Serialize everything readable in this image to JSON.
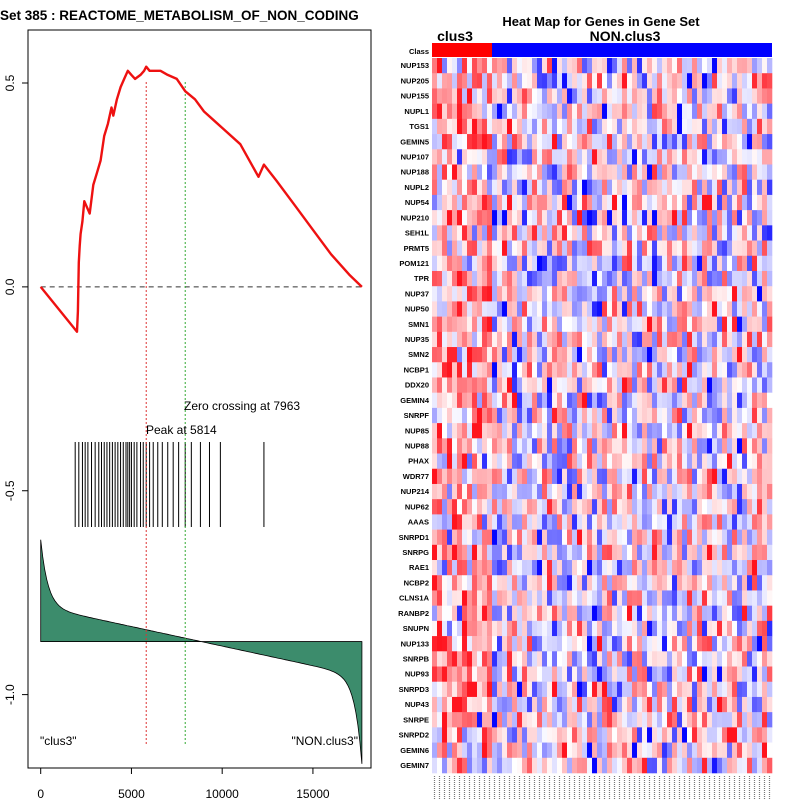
{
  "chart_data": [
    {
      "type": "line",
      "title": "Set  385 : REACTOME_METABOLISM_OF_NON_CODING",
      "xlabel": "",
      "ylabel": "",
      "xlim": [
        -700,
        18200
      ],
      "ylim": [
        -1.18,
        0.63
      ],
      "xticks": [
        0,
        5000,
        10000,
        15000
      ],
      "xtick_labels": [
        "0",
        "5000",
        "10000",
        "15000"
      ],
      "yticks": [
        0.5,
        0.0,
        -0.5,
        -1.0
      ],
      "ytick_labels": [
        "0.5",
        "0.0",
        "-0.5",
        "-1.0"
      ],
      "running_es": {
        "x": [
          0,
          2000,
          2050,
          2100,
          2150,
          2200,
          2300,
          2400,
          2500,
          2700,
          2900,
          3100,
          3300,
          3500,
          3700,
          3900,
          4000,
          4200,
          4400,
          4600,
          4800,
          5000,
          5200,
          5500,
          5700,
          5814,
          6000,
          6300,
          6600,
          7000,
          7500,
          7963,
          8500,
          9000,
          9500,
          10000,
          11000,
          12000,
          12300,
          13000,
          14000,
          15000,
          16000,
          17000,
          17700
        ],
        "y": [
          0.0,
          -0.11,
          -0.06,
          0.06,
          0.1,
          0.13,
          0.16,
          0.21,
          0.2,
          0.18,
          0.25,
          0.28,
          0.31,
          0.37,
          0.4,
          0.44,
          0.42,
          0.46,
          0.49,
          0.51,
          0.53,
          0.52,
          0.51,
          0.52,
          0.53,
          0.54,
          0.53,
          0.53,
          0.53,
          0.52,
          0.51,
          0.48,
          0.46,
          0.43,
          0.41,
          0.39,
          0.35,
          0.27,
          0.3,
          0.26,
          0.2,
          0.14,
          0.08,
          0.03,
          0.0
        ]
      },
      "hits": [
        1900,
        2100,
        2300,
        2450,
        2600,
        2800,
        3000,
        3200,
        3350,
        3500,
        3650,
        3800,
        3950,
        4100,
        4250,
        4400,
        4550,
        4700,
        4800,
        4900,
        5000,
        5150,
        5300,
        5500,
        5650,
        5814,
        6000,
        6200,
        6450,
        6700,
        7000,
        7300,
        7600,
        7963,
        8300,
        8800,
        9300,
        9900,
        12300
      ],
      "peak": {
        "x": 5814,
        "label": "Peak at 5814"
      },
      "zero_crossing": {
        "x": 7963,
        "label": "Zero crossing at 7963"
      },
      "ranked_metric": {
        "baseline": -0.87,
        "start": -0.62,
        "end": -1.17,
        "n": 17700
      },
      "annotations": {
        "left": "\"clus3\"",
        "right": "\"NON.clus3\""
      },
      "colors": {
        "es_line": "#ee1111",
        "zero_line": "#333333",
        "peak_line": "#dd3333",
        "zero_cross_line": "#33aa33",
        "metric_fill": "#3c8c6c",
        "hits": "#000000"
      }
    },
    {
      "type": "heatmap",
      "title": "Heat Map for Genes in Gene Set",
      "class_label": "Class",
      "class_groups": [
        {
          "name": "clus3",
          "count": 12,
          "color": "#ff0000"
        },
        {
          "name": "NON.clus3",
          "count": 56,
          "color": "#0000ff"
        }
      ],
      "columns": 68,
      "rows": [
        "NUP153",
        "NUP205",
        "NUP155",
        "NUPL1",
        "TGS1",
        "GEMIN5",
        "NUP107",
        "NUP188",
        "NUPL2",
        "NUP54",
        "NUP210",
        "SEH1L",
        "PRMT5",
        "POM121",
        "TPR",
        "NUP37",
        "NUP50",
        "SMN1",
        "NUP35",
        "SMN2",
        "NCBP1",
        "DDX20",
        "GEMIN4",
        "SNRPF",
        "NUP85",
        "NUP88",
        "PHAX",
        "WDR77",
        "NUP214",
        "NUP62",
        "AAAS",
        "SNRPD1",
        "SNRPG",
        "RAE1",
        "NCBP2",
        "CLNS1A",
        "RANBP2",
        "SNUPN",
        "NUP133",
        "SNRPB",
        "NUP93",
        "SNRPD3",
        "NUP43",
        "SNRPE",
        "SNRPD2",
        "GEMIN6",
        "GEMIN7"
      ],
      "seed": 385
    }
  ]
}
